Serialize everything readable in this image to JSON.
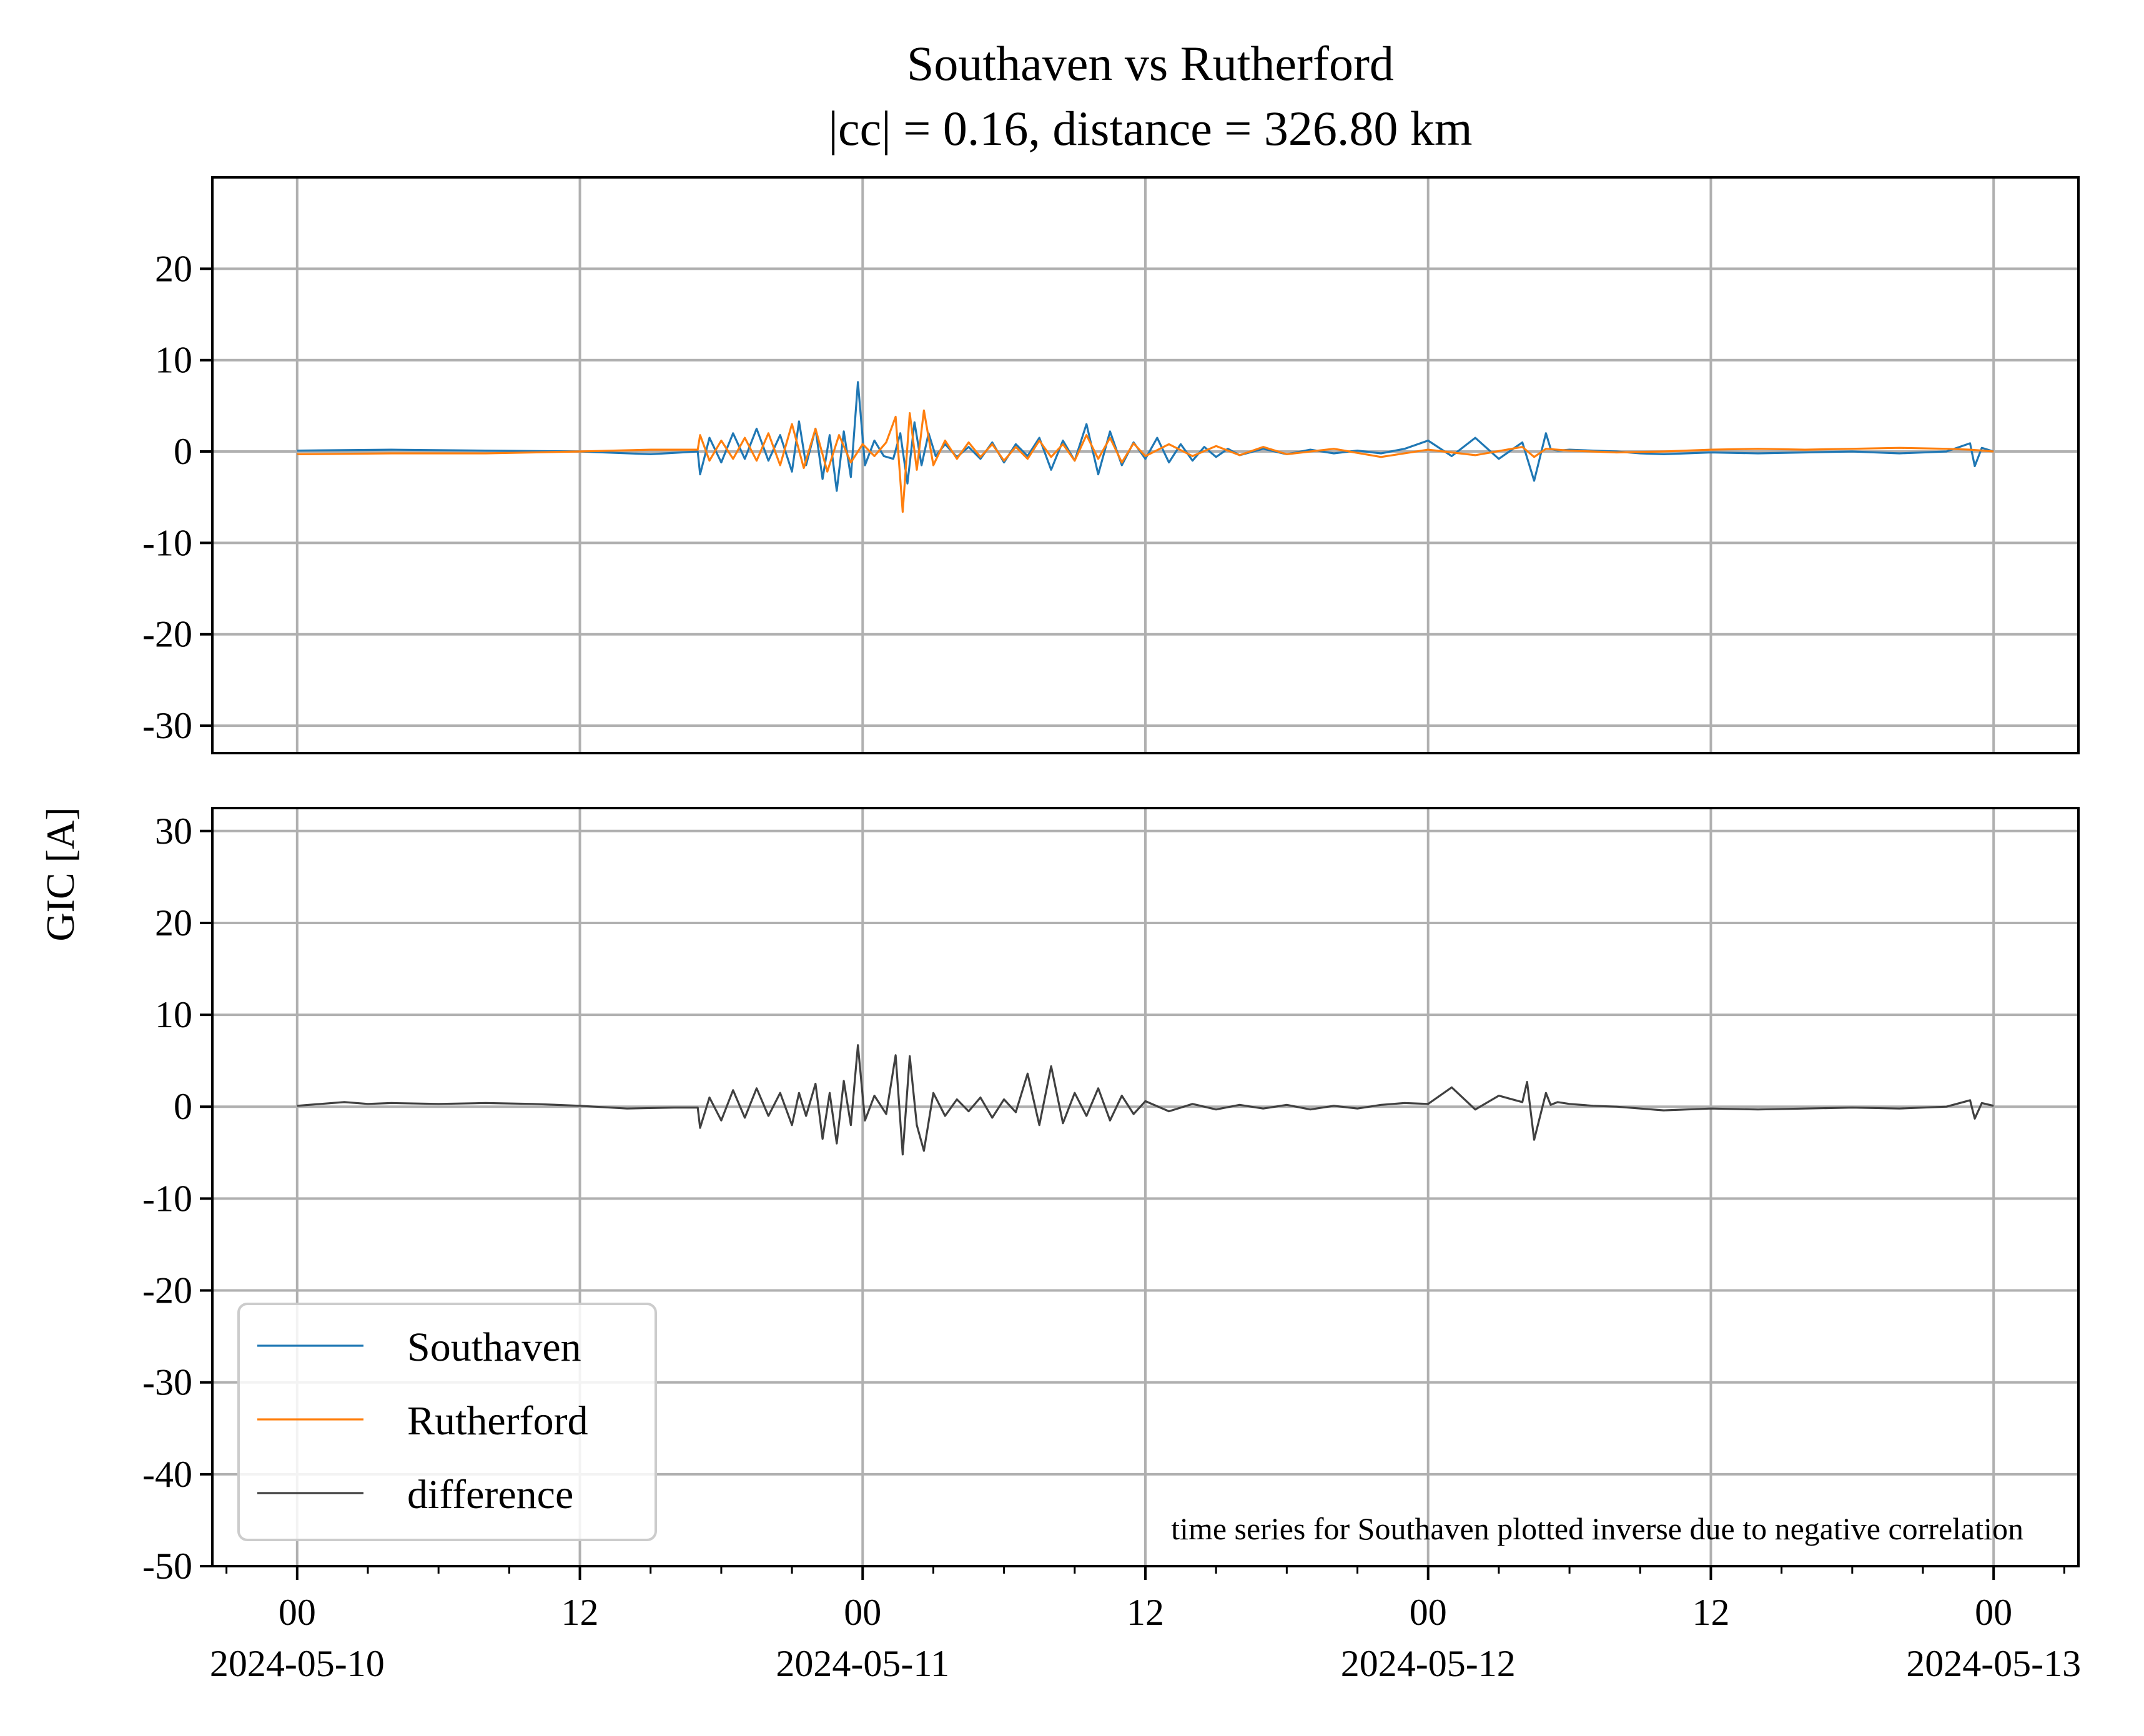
{
  "chart_data": {
    "type": "line",
    "title": "Southaven vs Rutherford",
    "subtitle": "|cc| = 0.16, distance = 326.80 km",
    "ylabel": "GIC [A]",
    "x_start": "2024-05-10 00:00",
    "x_end": "2024-05-13 00:00",
    "x_tick_times": [
      "2024-05-10 00:00",
      "2024-05-10 12:00",
      "2024-05-11 00:00",
      "2024-05-11 12:00",
      "2024-05-12 00:00",
      "2024-05-12 12:00",
      "2024-05-13 00:00"
    ],
    "x_tick_labels": [
      {
        "time": "00",
        "date": "2024-05-10"
      },
      {
        "time": "12",
        "date": ""
      },
      {
        "time": "00",
        "date": "2024-05-11"
      },
      {
        "time": "12",
        "date": ""
      },
      {
        "time": "00",
        "date": "2024-05-12"
      },
      {
        "time": "12",
        "date": ""
      },
      {
        "time": "00",
        "date": "2024-05-13"
      }
    ],
    "grid": true,
    "legend_position": "lower-left",
    "annotation": "time series for Southaven plotted inverse due to negative correlation",
    "panels": [
      {
        "ylim": [
          -30,
          30
        ],
        "yticks": [
          "20",
          "10",
          "0",
          "-10",
          "-20",
          "-30"
        ],
        "ytick_values": [
          20,
          10,
          0,
          -10,
          -20,
          -30
        ],
        "series": [
          {
            "name": "Southaven",
            "color": "#1f77b4",
            "x_hours": [
              0,
              4,
              8,
              12,
              15,
              17,
              17.1,
              17.5,
              18,
              18.5,
              19,
              19.5,
              20,
              20.5,
              21,
              21.3,
              21.6,
              22,
              22.3,
              22.6,
              22.9,
              23.2,
              23.5,
              23.8,
              24.1,
              24.5,
              24.9,
              25.3,
              25.6,
              25.9,
              26.2,
              26.5,
              26.8,
              27.1,
              27.5,
              28,
              28.5,
              29,
              29.5,
              30,
              30.5,
              31,
              31.5,
              32,
              32.5,
              33,
              33.5,
              34,
              34.5,
              35,
              35.5,
              36,
              36.5,
              37,
              37.5,
              38,
              38.5,
              39,
              39.5,
              40,
              41,
              42,
              43,
              44,
              45,
              46,
              47,
              48,
              49,
              50,
              51,
              52,
              52.5,
              53,
              53.2,
              53.5,
              54,
              55,
              56,
              57,
              58,
              60,
              62,
              64,
              66,
              68,
              70,
              71,
              71.2,
              71.5,
              72
            ],
            "y": [
              0.1,
              0.2,
              0.1,
              0,
              -0.3,
              0,
              -2.5,
              1.5,
              -1.2,
              2.0,
              -0.8,
              2.5,
              -1.0,
              1.8,
              -2.2,
              3.3,
              -1.5,
              2.5,
              -3.0,
              1.8,
              -4.3,
              2.2,
              -2.8,
              7.6,
              -1.5,
              1.2,
              -0.5,
              -0.8,
              2.0,
              -3.5,
              3.2,
              -1.5,
              2.0,
              -0.5,
              0.8,
              -0.6,
              0.5,
              -0.8,
              1.0,
              -1.2,
              0.8,
              -0.5,
              1.5,
              -2.0,
              1.2,
              -1.0,
              3.0,
              -2.5,
              2.2,
              -1.5,
              1.0,
              -0.8,
              1.5,
              -1.2,
              0.8,
              -1.0,
              0.5,
              -0.6,
              0.3,
              -0.4,
              0.3,
              -0.3,
              0.2,
              -0.2,
              0.1,
              -0.2,
              0.3,
              1.2,
              -0.5,
              1.5,
              -0.8,
              1.0,
              -3.2,
              2.0,
              0.3,
              0.1,
              0.2,
              0.1,
              0,
              -0.2,
              -0.3,
              -0.1,
              -0.2,
              -0.1,
              0,
              -0.2,
              0,
              0.9,
              -1.6,
              0.4,
              0
            ]
          },
          {
            "name": "Rutherford",
            "color": "#ff7f0e",
            "x_hours": [
              0,
              4,
              8,
              12,
              15,
              17,
              17.1,
              17.5,
              18,
              18.5,
              19,
              19.5,
              20,
              20.5,
              21,
              21.5,
              22,
              22.5,
              23,
              23.5,
              24,
              24.5,
              25,
              25.4,
              25.7,
              26.0,
              26.3,
              26.6,
              27,
              27.5,
              28,
              28.5,
              29,
              29.5,
              30,
              30.5,
              31,
              31.5,
              32,
              32.5,
              33,
              33.5,
              34,
              34.5,
              35,
              35.5,
              36,
              37,
              38,
              39,
              40,
              41,
              42,
              44,
              46,
              48,
              50,
              52,
              52.5,
              53,
              54,
              56,
              58,
              60,
              62,
              64,
              66,
              68,
              70,
              71,
              72
            ],
            "y": [
              -0.3,
              -0.2,
              -0.2,
              0,
              0.2,
              0.2,
              1.8,
              -1.0,
              1.2,
              -0.8,
              1.5,
              -1.0,
              2.0,
              -1.5,
              3.0,
              -1.8,
              2.5,
              -2.2,
              1.8,
              -1.2,
              0.8,
              -0.5,
              1.0,
              3.8,
              -6.6,
              4.2,
              -2.0,
              4.5,
              -1.5,
              1.2,
              -0.8,
              1.0,
              -0.6,
              0.8,
              -1.0,
              0.5,
              -0.8,
              1.2,
              -0.6,
              0.8,
              -1.0,
              1.8,
              -0.8,
              1.5,
              -1.2,
              0.9,
              -0.5,
              0.8,
              -0.5,
              0.6,
              -0.4,
              0.5,
              -0.3,
              0.3,
              -0.6,
              0.2,
              -0.4,
              0.5,
              -0.6,
              0.3,
              0.1,
              -0.1,
              0,
              0.2,
              0.3,
              0.2,
              0.3,
              0.4,
              0.3,
              0.2,
              0
            ]
          }
        ]
      },
      {
        "ylim": [
          -50,
          32
        ],
        "yticks": [
          "30",
          "20",
          "10",
          "0",
          "-10",
          "-20",
          "-30",
          "-40",
          "-50"
        ],
        "ytick_values": [
          30,
          20,
          10,
          0,
          -10,
          -20,
          -30,
          -40,
          -50
        ],
        "series": [
          {
            "name": "difference",
            "color": "#404040",
            "x_hours": [
              0,
              1,
              2,
              3,
              4,
              6,
              8,
              10,
              12,
              14,
              16,
              17,
              17.1,
              17.5,
              18,
              18.5,
              19,
              19.5,
              20,
              20.5,
              21,
              21.3,
              21.6,
              22,
              22.3,
              22.6,
              22.9,
              23.2,
              23.5,
              23.8,
              24.1,
              24.5,
              25,
              25.4,
              25.7,
              26.0,
              26.3,
              26.6,
              27,
              27.5,
              28,
              28.5,
              29,
              29.5,
              30,
              30.5,
              31,
              31.5,
              32,
              32.5,
              33,
              33.5,
              34,
              34.5,
              35,
              35.5,
              36,
              37,
              38,
              39,
              40,
              41,
              42,
              43,
              44,
              45,
              46,
              47,
              48,
              49,
              50,
              51,
              52,
              52.2,
              52.5,
              53,
              53.2,
              53.5,
              54,
              55,
              56,
              57,
              58,
              60,
              62,
              64,
              66,
              68,
              70,
              71,
              71.2,
              71.5,
              72
            ],
            "y": [
              0.1,
              0.3,
              0.5,
              0.3,
              0.4,
              0.3,
              0.4,
              0.3,
              0.1,
              -0.2,
              -0.1,
              -0.1,
              -2.3,
              1.0,
              -1.5,
              1.8,
              -1.2,
              2.0,
              -1.0,
              1.5,
              -2.0,
              1.5,
              -1.0,
              2.5,
              -3.5,
              1.5,
              -4.0,
              2.8,
              -2.0,
              6.7,
              -1.5,
              1.2,
              -0.8,
              5.6,
              -5.2,
              5.5,
              -2.0,
              -4.8,
              1.5,
              -1.0,
              0.8,
              -0.5,
              1.0,
              -1.2,
              0.8,
              -0.6,
              3.6,
              -2.0,
              4.4,
              -1.8,
              1.5,
              -1.0,
              2.0,
              -1.5,
              1.2,
              -0.8,
              0.6,
              -0.5,
              0.3,
              -0.3,
              0.2,
              -0.2,
              0.2,
              -0.3,
              0.1,
              -0.2,
              0.2,
              0.4,
              0.3,
              2.1,
              -0.3,
              1.2,
              0.5,
              2.7,
              -3.6,
              1.5,
              0.2,
              0.5,
              0.3,
              0.1,
              0,
              -0.2,
              -0.4,
              -0.2,
              -0.3,
              -0.2,
              -0.1,
              -0.2,
              0,
              0.7,
              -1.3,
              0.4,
              0.1
            ]
          }
        ]
      }
    ]
  }
}
